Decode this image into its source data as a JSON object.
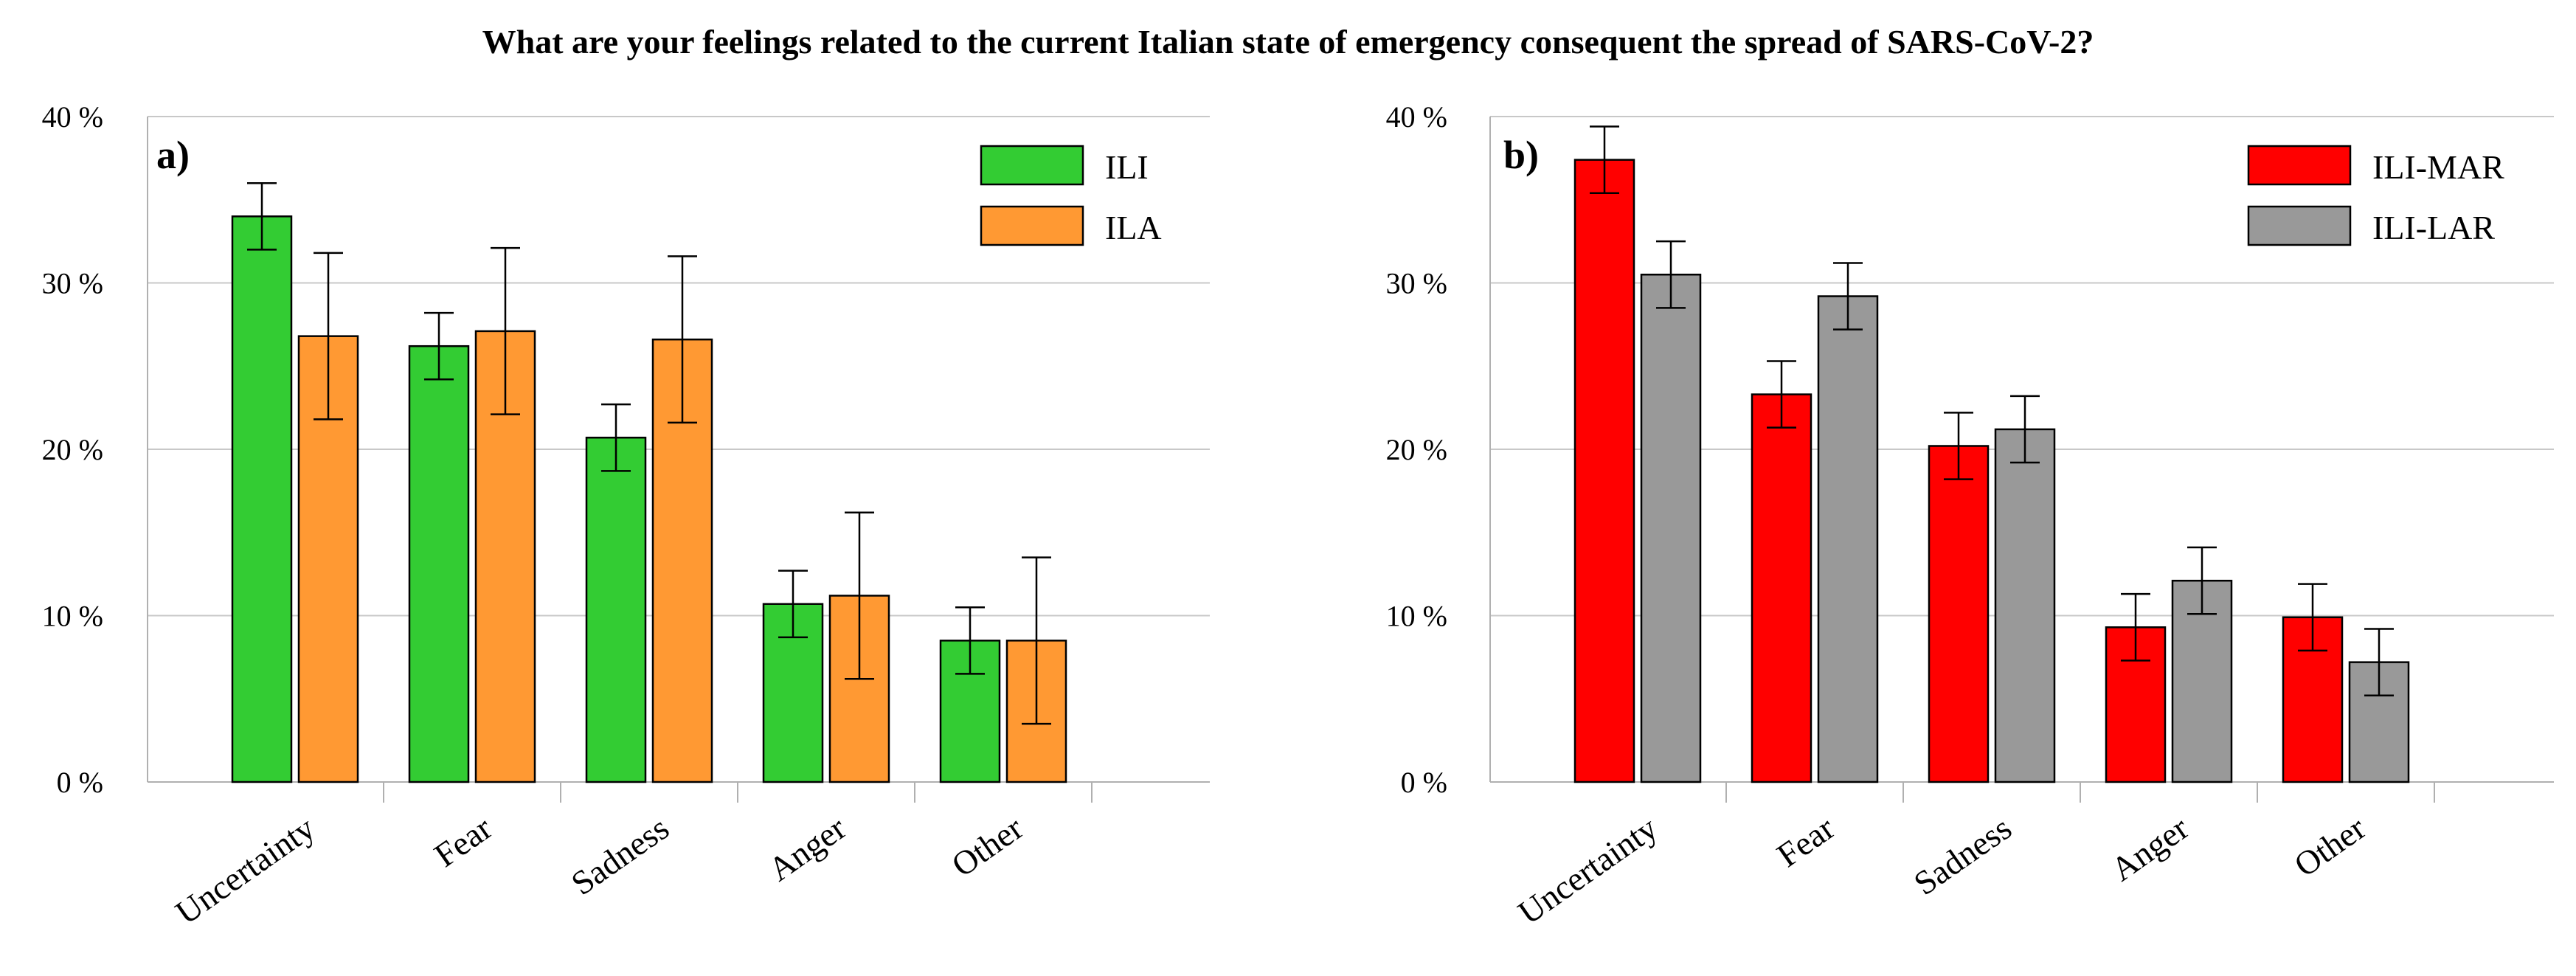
{
  "figure": {
    "title": "What are your feelings related to the current Italian state of emergency consequent the spread of SARS-CoV-2?"
  },
  "chart_data": [
    {
      "type": "bar",
      "panel_label": "a)",
      "categories": [
        "Uncertainty",
        "Fear",
        "Sadness",
        "Anger",
        "Other"
      ],
      "series": [
        {
          "name": "ILI",
          "color": "#33cc33",
          "values": [
            34,
            26.2,
            20.7,
            10.7,
            8.5
          ],
          "errors": [
            2.0,
            2.0,
            2.0,
            2.0,
            2.0
          ]
        },
        {
          "name": "ILA",
          "color": "#ff9933",
          "values": [
            26.8,
            27.1,
            26.6,
            11.2,
            8.5
          ],
          "errors": [
            5.0,
            5.0,
            5.0,
            5.0,
            5.0
          ]
        }
      ],
      "ylim": [
        0,
        40
      ],
      "yticks": [
        0,
        10,
        20,
        30,
        40
      ],
      "ytick_labels": [
        "0 %",
        "10 %",
        "20 %",
        "30 %",
        "40 %"
      ],
      "grid": true,
      "legend": "top-right",
      "xlabel": "",
      "ylabel": ""
    },
    {
      "type": "bar",
      "panel_label": "b)",
      "categories": [
        "Uncertainty",
        "Fear",
        "Sadness",
        "Anger",
        "Other"
      ],
      "series": [
        {
          "name": "ILI-MAR",
          "color": "#ff0000",
          "values": [
            37.4,
            23.3,
            20.2,
            9.3,
            9.9
          ],
          "errors": [
            2.0,
            2.0,
            2.0,
            2.0,
            2.0
          ]
        },
        {
          "name": "ILI-LAR",
          "color": "#999999",
          "values": [
            30.5,
            29.2,
            21.2,
            12.1,
            7.2
          ],
          "errors": [
            2.0,
            2.0,
            2.0,
            2.0,
            2.0
          ]
        }
      ],
      "ylim": [
        0,
        40
      ],
      "yticks": [
        0,
        10,
        20,
        30,
        40
      ],
      "ytick_labels": [
        "0 %",
        "10 %",
        "20 %",
        "30 %",
        "40 %"
      ],
      "grid": true,
      "legend": "top-right",
      "xlabel": "",
      "ylabel": ""
    }
  ]
}
